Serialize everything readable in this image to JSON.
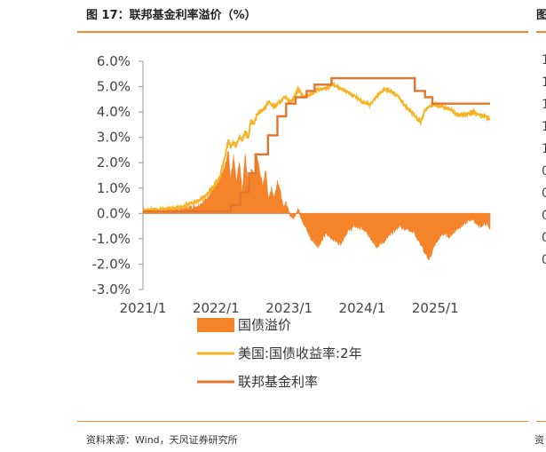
{
  "figure": {
    "title": "图 17：联邦基金利率溢价（%）",
    "source": "资料来源：Wind，天风证券研究所"
  },
  "neighbor_panel": {
    "title_fragment": "图",
    "source_fragment": "资",
    "tick_fragments": [
      "1",
      "1",
      "1",
      "1",
      "1",
      "0",
      "0",
      "0",
      "0",
      "0"
    ]
  },
  "colors": {
    "accent_rule": "#f08a33",
    "premium_area": "#f5832a",
    "treasury_2y": "#f7b323",
    "fed_funds": "#e3762e",
    "axis": "#999999"
  },
  "chart_data": {
    "type": "line",
    "title": "图 17：联邦基金利率溢价（%）",
    "xlabel": "",
    "ylabel": "%",
    "ylim": [
      -3.0,
      6.0
    ],
    "yticks": [
      6.0,
      5.0,
      4.0,
      3.0,
      2.0,
      1.0,
      0.0,
      -1.0,
      -2.0,
      -3.0
    ],
    "ytick_labels": [
      "6.0%",
      "5.0%",
      "4.0%",
      "3.0%",
      "2.0%",
      "1.0%",
      "0.0%",
      "-1.0%",
      "-2.0%",
      "-3.0%"
    ],
    "xlim": [
      2021.0,
      2025.75
    ],
    "xticks": [
      2021.0,
      2022.0,
      2023.0,
      2024.0,
      2025.0
    ],
    "xtick_labels": [
      "2021/1",
      "2022/1",
      "2023/1",
      "2024/1",
      "2025/1"
    ],
    "legend_position": "bottom",
    "series": [
      {
        "name": "国债溢价",
        "kind": "area",
        "x": [
          2021.0,
          2021.25,
          2021.5,
          2021.75,
          2021.85,
          2021.95,
          2022.05,
          2022.12,
          2022.17,
          2022.2,
          2022.24,
          2022.28,
          2022.32,
          2022.36,
          2022.4,
          2022.44,
          2022.48,
          2022.52,
          2022.56,
          2022.6,
          2022.64,
          2022.68,
          2022.72,
          2022.76,
          2022.8,
          2022.84,
          2022.88,
          2022.92,
          2022.96,
          2023.0,
          2023.06,
          2023.12,
          2023.2,
          2023.3,
          2023.4,
          2023.5,
          2023.6,
          2023.7,
          2023.8,
          2023.9,
          2024.0,
          2024.1,
          2024.2,
          2024.3,
          2024.4,
          2024.5,
          2024.6,
          2024.7,
          2024.8,
          2024.86,
          2024.92,
          2025.0,
          2025.1,
          2025.2,
          2025.3,
          2025.4,
          2025.5,
          2025.6,
          2025.7,
          2025.75
        ],
        "values": [
          0.1,
          0.12,
          0.15,
          0.3,
          0.5,
          0.9,
          1.3,
          1.8,
          2.5,
          1.3,
          2.3,
          1.2,
          2.1,
          0.8,
          2.4,
          1.0,
          1.7,
          1.5,
          2.3,
          1.6,
          1.1,
          1.7,
          0.5,
          1.0,
          0.6,
          1.3,
          0.9,
          0.3,
          0.4,
          0.0,
          -0.2,
          0.2,
          -0.4,
          -1.0,
          -1.3,
          -0.8,
          -1.0,
          -1.2,
          -0.7,
          -0.5,
          -0.6,
          -0.9,
          -1.3,
          -1.1,
          -0.8,
          -0.5,
          -0.6,
          -0.7,
          -1.2,
          -1.6,
          -1.8,
          -1.2,
          -0.8,
          -0.9,
          -0.6,
          -0.4,
          -0.2,
          -0.5,
          -0.4,
          -0.6
        ]
      },
      {
        "name": "美国:国债收益率:2年",
        "kind": "line",
        "x": [
          2021.0,
          2021.25,
          2021.5,
          2021.75,
          2021.85,
          2021.95,
          2022.05,
          2022.12,
          2022.17,
          2022.2,
          2022.24,
          2022.28,
          2022.32,
          2022.36,
          2022.4,
          2022.44,
          2022.48,
          2022.52,
          2022.56,
          2022.6,
          2022.64,
          2022.68,
          2022.72,
          2022.76,
          2022.8,
          2022.84,
          2022.88,
          2022.92,
          2022.96,
          2023.0,
          2023.06,
          2023.12,
          2023.2,
          2023.3,
          2023.4,
          2023.5,
          2023.6,
          2023.7,
          2023.8,
          2023.9,
          2024.0,
          2024.1,
          2024.2,
          2024.3,
          2024.4,
          2024.5,
          2024.6,
          2024.7,
          2024.8,
          2024.86,
          2024.92,
          2025.0,
          2025.1,
          2025.2,
          2025.3,
          2025.4,
          2025.5,
          2025.6,
          2025.7,
          2025.75
        ],
        "values": [
          0.12,
          0.15,
          0.22,
          0.5,
          0.7,
          1.0,
          1.4,
          2.2,
          2.9,
          2.6,
          2.8,
          2.7,
          3.0,
          2.9,
          3.2,
          3.0,
          3.7,
          3.5,
          3.9,
          4.0,
          4.1,
          4.2,
          4.4,
          4.3,
          4.2,
          4.3,
          4.4,
          4.5,
          4.6,
          4.4,
          4.5,
          4.9,
          4.6,
          4.7,
          4.9,
          4.9,
          5.1,
          4.9,
          4.8,
          4.6,
          4.4,
          4.3,
          4.6,
          4.9,
          4.8,
          4.6,
          4.2,
          3.9,
          3.6,
          4.1,
          4.2,
          4.3,
          4.2,
          4.1,
          3.9,
          3.9,
          4.0,
          3.9,
          3.8,
          3.7
        ]
      },
      {
        "name": "联邦基金利率",
        "kind": "step",
        "x": [
          2021.0,
          2022.2,
          2022.33,
          2022.45,
          2022.54,
          2022.71,
          2022.84,
          2022.96,
          2023.09,
          2023.24,
          2023.35,
          2023.58,
          2024.72,
          2024.86,
          2024.96,
          2025.75
        ],
        "values": [
          0.08,
          0.33,
          0.83,
          1.58,
          2.33,
          3.08,
          3.83,
          4.33,
          4.58,
          4.83,
          5.08,
          5.33,
          4.83,
          4.58,
          4.33,
          4.33
        ]
      }
    ]
  }
}
